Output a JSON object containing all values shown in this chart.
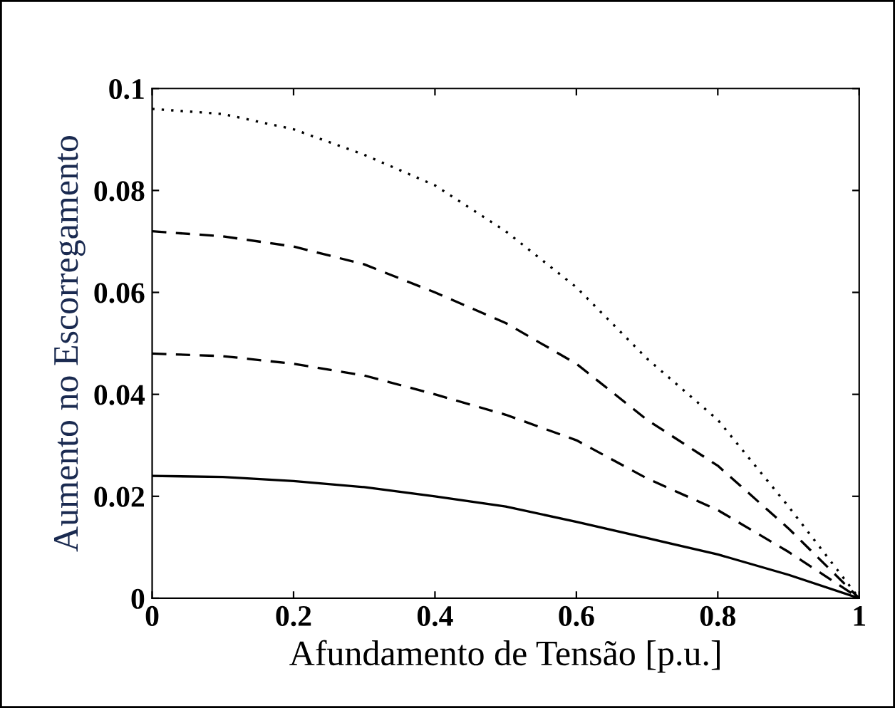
{
  "chart_data": {
    "type": "line",
    "xlabel": "Afundamento de Tensão [p.u.]",
    "ylabel": "Aumento no Escorregamento",
    "x": [
      0,
      0.1,
      0.2,
      0.3,
      0.4,
      0.5,
      0.6,
      0.7,
      0.8,
      0.9,
      1
    ],
    "series": [
      {
        "color": "#000000",
        "line_style": "solid",
        "values": [
          0.024,
          0.0238,
          0.023,
          0.0218,
          0.02,
          0.018,
          0.015,
          0.0118,
          0.0086,
          0.0046,
          0
        ]
      },
      {
        "color": "#000000",
        "line_style": "dashed",
        "values": [
          0.048,
          0.0475,
          0.046,
          0.0437,
          0.04,
          0.036,
          0.031,
          0.0235,
          0.0173,
          0.0091,
          0
        ]
      },
      {
        "color": "#000000",
        "line_style": "dashed",
        "values": [
          0.072,
          0.071,
          0.069,
          0.0655,
          0.06,
          0.054,
          0.046,
          0.035,
          0.026,
          0.0137,
          0
        ]
      },
      {
        "color": "#000000",
        "line_style": "dotted",
        "values": [
          0.096,
          0.095,
          0.092,
          0.087,
          0.081,
          0.072,
          0.061,
          0.047,
          0.035,
          0.018,
          0
        ]
      }
    ],
    "xlim": [
      0,
      1
    ],
    "xticks": [
      0,
      0.2,
      0.4,
      0.6,
      0.8,
      1
    ],
    "ylim": [
      0,
      0.1
    ],
    "yticks": [
      0,
      0.02,
      0.04,
      0.06,
      0.08,
      0.1
    ],
    "grid": false,
    "legend": false,
    "marker": "none"
  }
}
